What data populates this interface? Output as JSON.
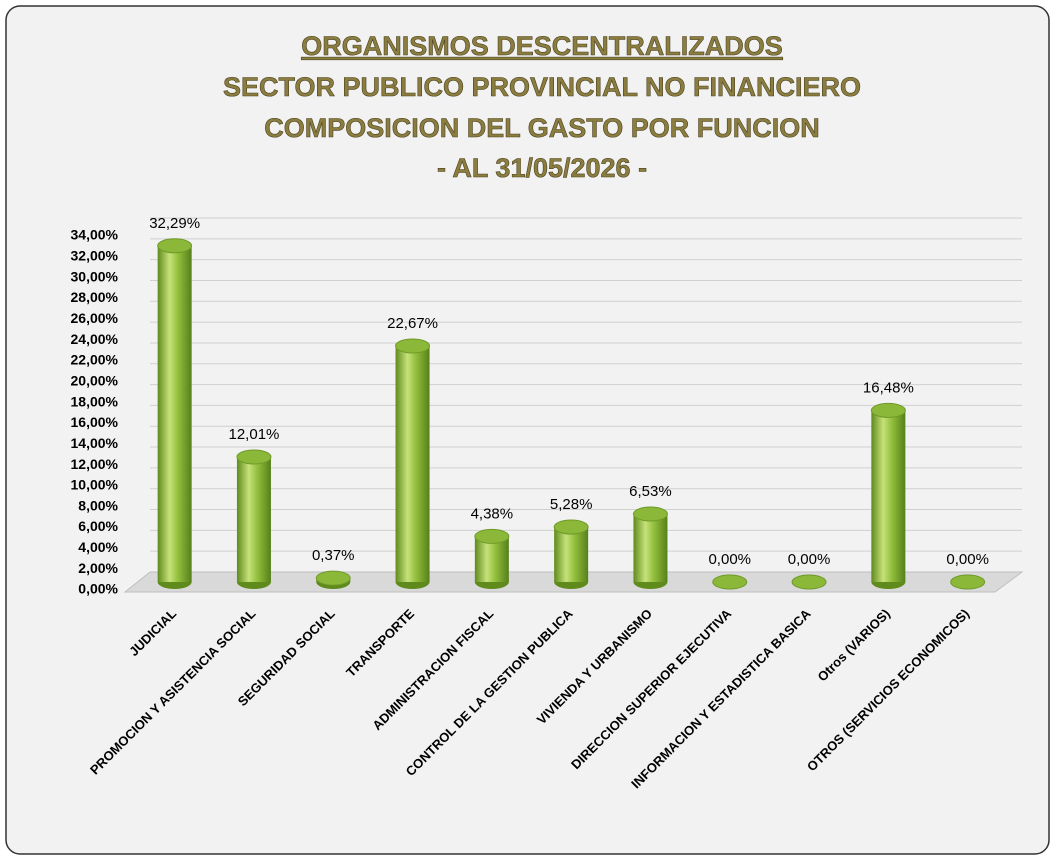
{
  "chart_data": {
    "type": "bar",
    "title": [
      "ORGANISMOS DESCENTRALIZADOS",
      "SECTOR PUBLICO PROVINCIAL NO FINANCIERO",
      "COMPOSICION DEL GASTO POR FUNCION",
      "-  AL 31/05/2026 -"
    ],
    "categories": [
      "JUDICIAL",
      "PROMOCION Y ASISTENCIA SOCIAL",
      "SEGURIDAD SOCIAL",
      "TRANSPORTE",
      "ADMINISTRACION FISCAL",
      "CONTROL DE LA GESTION PUBLICA",
      "VIVIENDA Y URBANISMO",
      "DIRECCION SUPERIOR EJECUTIVA",
      "INFORMACION Y ESTADISTICA BASICA",
      "Otros (VARIOS)",
      "OTROS (SERVICIOS ECONOMICOS)"
    ],
    "values": [
      32.29,
      12.01,
      0.37,
      22.67,
      4.38,
      5.28,
      6.53,
      0.0,
      0.0,
      16.48,
      0.0
    ],
    "value_labels": [
      "32,29%",
      "12,01%",
      "0,37%",
      "22,67%",
      "4,38%",
      "5,28%",
      "6,53%",
      "0,00%",
      "0,00%",
      "16,48%",
      "0,00%"
    ],
    "color": "#8cb83a",
    "ylim": [
      0,
      34
    ],
    "yticks": [
      {
        "value": 0,
        "label": "0,00%"
      },
      {
        "value": 2,
        "label": "2,00%"
      },
      {
        "value": 4,
        "label": "4,00%"
      },
      {
        "value": 6,
        "label": "6,00%"
      },
      {
        "value": 8,
        "label": "8,00%"
      },
      {
        "value": 10,
        "label": "10,00%"
      },
      {
        "value": 12,
        "label": "12,00%"
      },
      {
        "value": 14,
        "label": "14,00%"
      },
      {
        "value": 16,
        "label": "16,00%"
      },
      {
        "value": 18,
        "label": "18,00%"
      },
      {
        "value": 20,
        "label": "20,00%"
      },
      {
        "value": 22,
        "label": "22,00%"
      },
      {
        "value": 24,
        "label": "24,00%"
      },
      {
        "value": 26,
        "label": "26,00%"
      },
      {
        "value": 28,
        "label": "28,00%"
      },
      {
        "value": 30,
        "label": "30,00%"
      },
      {
        "value": 32,
        "label": "32,00%"
      },
      {
        "value": 34,
        "label": "34,00%"
      }
    ],
    "grid": true
  }
}
